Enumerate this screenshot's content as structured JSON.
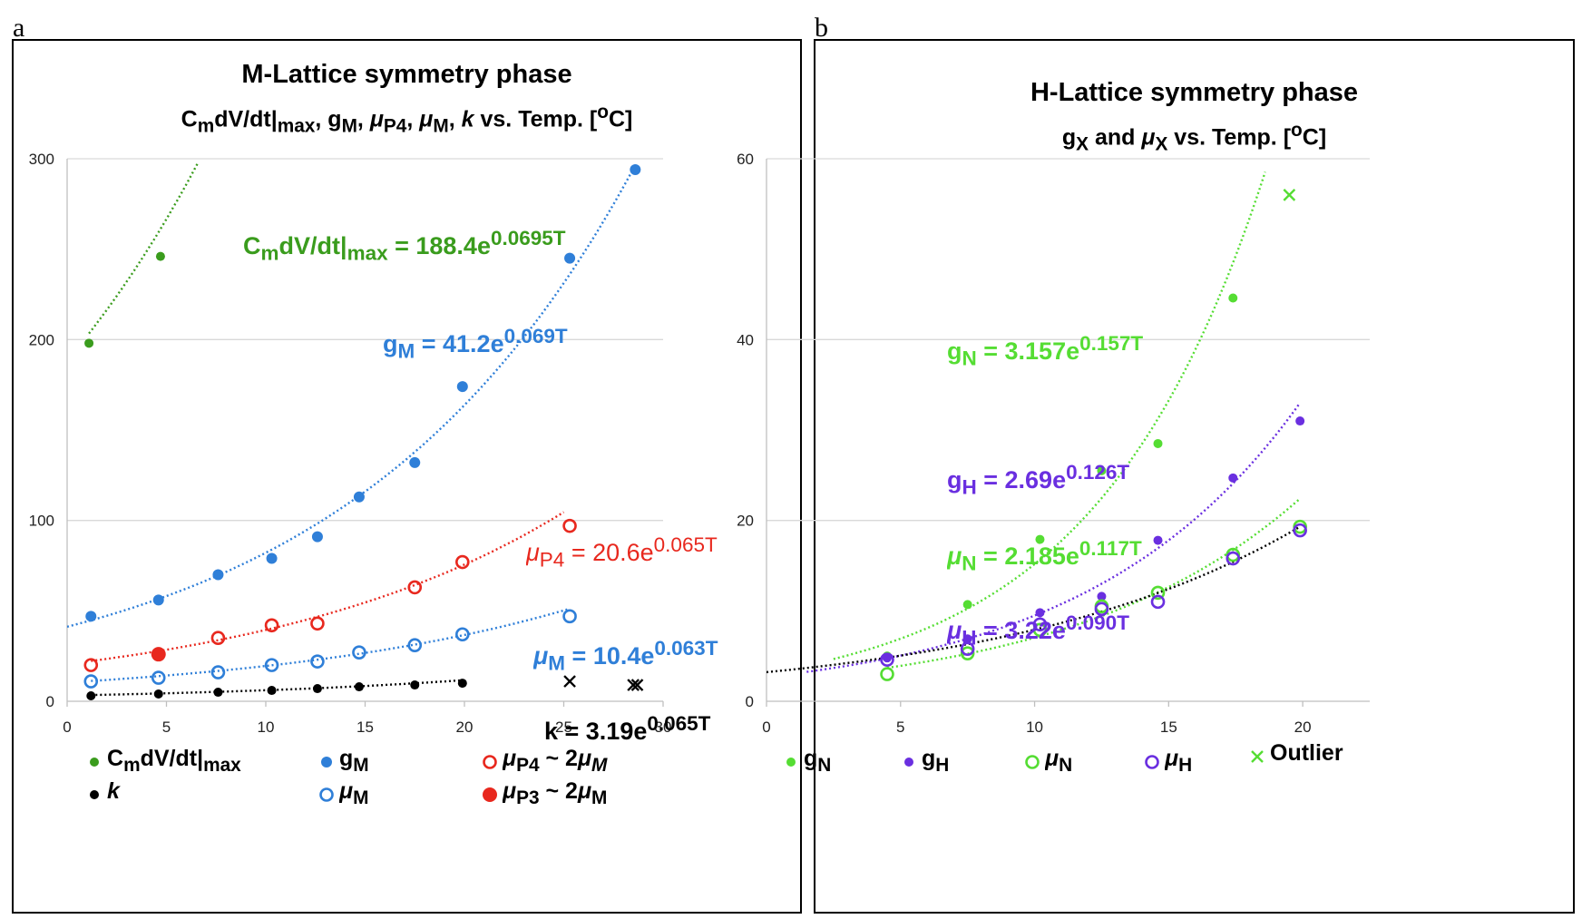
{
  "panels": [
    {
      "letter": "a",
      "title_main": "M-Lattice symmetry phase",
      "title_sub": "C<sub>m</sub>dV/dt|<sub>max</sub>, g<sub>M</sub>, <i>μ</i><sub>P4</sub>, <i>μ</i><sub>M</sub>, <i>k</i>  vs. Temp. [<sup>o</sup>C]",
      "equations": [
        {
          "html": "C<sub>m</sub>dV/dt|<sub>max</sub> = 188.4e<sup>0.0695T</sup>",
          "color": "#3a9c1d"
        },
        {
          "html": "g<sub>M</sub> = 41.2e<sup>0.069T</sup>",
          "color": "#2f7fd8"
        },
        {
          "html": "<i>μ</i><sub>P4</sub> = 20.6e<sup>0.065T</sup>",
          "color": "#e8281e"
        },
        {
          "html": "<i>μ</i><sub>M</sub> = 10.4e<sup>0.063T</sup>",
          "color": "#2f7fd8"
        },
        {
          "html": "k = 3.19e<sup>0.065T</sup>",
          "color": "#000000"
        }
      ],
      "legend": [
        {
          "marker": "filled-small",
          "color": "#3a9c1d",
          "html": "C<sub>m</sub>dV/dt|<sub>max</sub>"
        },
        {
          "marker": "filled",
          "color": "#2f7fd8",
          "html": "g<sub>M</sub>"
        },
        {
          "marker": "hollow",
          "color": "#e8281e",
          "html": "<i>μ</i><sub>P4</sub> ~ 2<i>μ<sub>M</sub></i>"
        },
        {
          "marker": "filled-small",
          "color": "#000000",
          "html": "<i>k</i>"
        },
        {
          "marker": "hollow",
          "color": "#2f7fd8",
          "html": "<i>μ</i><sub>M</sub>"
        },
        {
          "marker": "filled-large",
          "color": "#e8281e",
          "html": "<i>μ</i><sub>P3</sub> ~ 2<i>μ</i><sub>M</sub>"
        }
      ]
    },
    {
      "letter": "b",
      "title_main": "H-Lattice symmetry phase",
      "title_sub": "g<sub>X</sub> and <i>μ</i><sub>X</sub> vs. Temp. [<sup>o</sup>C]",
      "equations": [
        {
          "html": "g<sub>N</sub> = 3.157e<sup>0.157T</sup>",
          "color": "#55dd33"
        },
        {
          "html": "g<sub>H</sub> = 2.69e<sup>0.126T</sup>",
          "color": "#6a2fe0"
        },
        {
          "html": "<i>μ</i><sub>N</sub> = 2.185e<sup>0.117T</sup>",
          "color": "#55dd33"
        },
        {
          "html": "<i>μ</i><sub>H</sub> = 3.22e<sup>0.090T</sup>",
          "color": "#6a2fe0"
        }
      ],
      "legend": [
        {
          "marker": "filled-small",
          "color": "#55dd33",
          "html": "g<sub>N</sub>"
        },
        {
          "marker": "filled-small",
          "color": "#6a2fe0",
          "html": "g<sub>H</sub>"
        },
        {
          "marker": "hollow",
          "color": "#55dd33",
          "html": "<i>μ</i><sub>N</sub>"
        },
        {
          "marker": "hollow",
          "color": "#6a2fe0",
          "html": "<i>μ</i><sub>H</sub>"
        },
        {
          "marker": "cross",
          "color": "#55dd33",
          "html": "Outlier"
        }
      ]
    }
  ],
  "chart_data": [
    {
      "type": "scatter",
      "title": "M-Lattice symmetry phase",
      "subtitle": "CmdV/dt|max, gM, μP4, μM, k vs. Temp. [oC]",
      "xlim": [
        0,
        30
      ],
      "ylim": [
        0,
        300
      ],
      "xticks": [
        0,
        5,
        10,
        15,
        20,
        25,
        30
      ],
      "yticks": [
        0,
        100,
        200,
        300
      ],
      "grid": true,
      "legend_position": "bottom",
      "series": [
        {
          "name": "CmdV/dt|max",
          "marker": "filled-small",
          "color": "#3a9c1d",
          "x": [
            1.1,
            4.7
          ],
          "y": [
            198,
            246
          ],
          "fit": {
            "a": 188.4,
            "b": 0.0695,
            "x_from": 1.1,
            "x_to": 6.6
          }
        },
        {
          "name": "gM",
          "marker": "filled",
          "color": "#2f7fd8",
          "x": [
            1.2,
            4.6,
            7.6,
            10.3,
            12.6,
            14.7,
            17.5,
            19.9,
            25.3,
            28.6
          ],
          "y": [
            47,
            56,
            70,
            79,
            91,
            113,
            132,
            174,
            245,
            294
          ],
          "fit": {
            "a": 41.2,
            "b": 0.069,
            "x_from": 0,
            "x_to": 28.6
          }
        },
        {
          "name": "μP4 ~ 2μM",
          "marker": "hollow",
          "color": "#e8281e",
          "x": [
            1.2,
            7.6,
            10.3,
            12.6,
            17.5,
            19.9,
            25.3
          ],
          "y": [
            20,
            35,
            42,
            43,
            63,
            77,
            97
          ],
          "fit": {
            "a": 20.6,
            "b": 0.065,
            "x_from": 1.2,
            "x_to": 25.0
          }
        },
        {
          "name": "μP3 ~ 2μM",
          "marker": "filled-large",
          "color": "#e8281e",
          "x": [
            4.6
          ],
          "y": [
            26
          ]
        },
        {
          "name": "μM",
          "marker": "hollow",
          "color": "#2f7fd8",
          "x": [
            1.2,
            4.6,
            7.6,
            10.3,
            12.6,
            14.7,
            17.5,
            19.9,
            25.3
          ],
          "y": [
            11,
            13,
            16,
            20,
            22,
            27,
            31,
            37,
            47
          ],
          "fit": {
            "a": 10.4,
            "b": 0.063,
            "x_from": 1.2,
            "x_to": 25.3
          }
        },
        {
          "name": "k",
          "marker": "filled-small",
          "color": "#000000",
          "x": [
            1.2,
            4.6,
            7.6,
            10.3,
            12.6,
            14.7,
            17.5,
            19.9
          ],
          "y": [
            3,
            4,
            5,
            6,
            7,
            8,
            9,
            10
          ],
          "fit": {
            "a": 3.19,
            "b": 0.065,
            "x_from": 1.2,
            "x_to": 19.9
          }
        },
        {
          "name": "k outliers",
          "marker": "cross",
          "color": "#000000",
          "x": [
            25.3,
            28.5,
            28.7
          ],
          "y": [
            11,
            9,
            9
          ]
        }
      ]
    },
    {
      "type": "scatter",
      "title": "H-Lattice symmetry phase",
      "subtitle": "gX and μX vs. Temp. [oC]",
      "xlim": [
        0,
        22.5
      ],
      "ylim": [
        0,
        60
      ],
      "xticks": [
        0,
        5,
        10,
        15,
        20
      ],
      "yticks": [
        0,
        20,
        40,
        60
      ],
      "grid": true,
      "legend_position": "bottom",
      "series": [
        {
          "name": "gN",
          "marker": "filled-small",
          "color": "#55dd33",
          "x": [
            4.5,
            7.5,
            10.2,
            12.5,
            14.6,
            17.4
          ],
          "y": [
            5,
            10.7,
            17.9,
            25.5,
            28.5,
            44.6
          ],
          "fit": {
            "a": 3.157,
            "b": 0.157,
            "x_from": 2.5,
            "x_to": 18.6
          }
        },
        {
          "name": "gH",
          "marker": "filled-small",
          "color": "#6a2fe0",
          "x": [
            4.5,
            7.5,
            10.2,
            12.5,
            14.6,
            17.4,
            19.9
          ],
          "y": [
            4.8,
            6.9,
            9.8,
            11.6,
            17.8,
            24.7,
            31
          ],
          "fit": {
            "a": 2.69,
            "b": 0.126,
            "x_from": 1.5,
            "x_to": 19.9
          }
        },
        {
          "name": "μN",
          "marker": "hollow",
          "color": "#55dd33",
          "x": [
            4.5,
            7.5,
            10.2,
            12.5,
            14.6,
            17.4,
            19.9
          ],
          "y": [
            3,
            5.3,
            7.9,
            10.5,
            12,
            16.2,
            19.3
          ],
          "fit": {
            "a": 2.185,
            "b": 0.117,
            "x_from": 4.5,
            "x_to": 19.9
          }
        },
        {
          "name": "μH",
          "marker": "hollow",
          "color": "#6a2fe0",
          "x": [
            4.5,
            7.5,
            10.2,
            12.5,
            14.6,
            17.4,
            19.9
          ],
          "y": [
            4.6,
            5.8,
            8.5,
            10.2,
            11,
            15.8,
            18.9
          ],
          "fit": {
            "a": 3.22,
            "b": 0.09,
            "x_from": 0,
            "x_to": 19.9,
            "color": "#000000"
          }
        },
        {
          "name": "Outlier",
          "marker": "cross",
          "color": "#55dd33",
          "x": [
            19.5
          ],
          "y": [
            56
          ]
        }
      ]
    }
  ]
}
